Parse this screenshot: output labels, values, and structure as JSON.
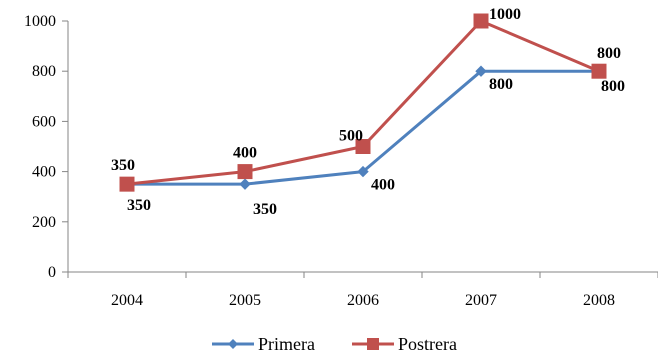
{
  "chart_data": {
    "type": "line",
    "title": "",
    "xlabel": "",
    "ylabel": "",
    "categories": [
      "2004",
      "2005",
      "2006",
      "2007",
      "2008"
    ],
    "ylim": [
      0,
      1000
    ],
    "yticks": [
      0,
      200,
      400,
      600,
      800,
      1000
    ],
    "grid": false,
    "legend_position": "bottom",
    "series": [
      {
        "name": "Primera",
        "values": [
          350,
          350,
          400,
          800,
          800
        ],
        "color": "#4F81BD",
        "marker": "diamond",
        "labels": [
          "350",
          "350",
          "400",
          "800",
          "800"
        ]
      },
      {
        "name": "Postrera",
        "values": [
          350,
          400,
          500,
          1000,
          800
        ],
        "color": "#C0504D",
        "marker": "square",
        "labels": [
          "350",
          "400",
          "500",
          "1000",
          "800"
        ]
      }
    ]
  }
}
